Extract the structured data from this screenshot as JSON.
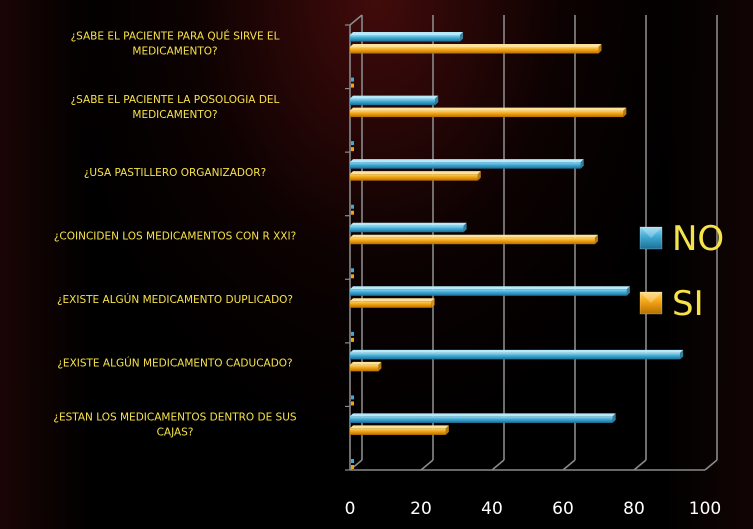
{
  "chart_data": {
    "type": "bar",
    "orientation": "horizontal",
    "categories": [
      "¿SABE EL PACIENTE PARA QUÉ SIRVE EL MEDICAMENTO?",
      "¿SABE EL PACIENTE LA POSOLOGIA DEL MEDICAMENTO?",
      "¿USA PASTILLERO ORGANIZADOR?",
      "¿COINCIDEN LOS MEDICAMENTOS CON R XXI?",
      "¿EXISTE ALGÚN MEDICAMENTO DUPLICADO?",
      "¿EXISTE ALGÚN MEDICAMENTO CADUCADO?",
      "¿ESTAN LOS MEDICAMENTOS DENTRO DE SUS CAJAS?"
    ],
    "series": [
      {
        "name": "NO",
        "color": "#3fa9d4",
        "values": [
          31,
          24,
          65,
          32,
          78,
          93,
          74
        ]
      },
      {
        "name": "SI",
        "color": "#f2a314",
        "values": [
          70,
          77,
          36,
          69,
          23,
          8,
          27
        ]
      }
    ],
    "xlim": [
      0,
      100
    ],
    "xticks": [
      "0",
      "20",
      "40",
      "60",
      "80",
      "100"
    ],
    "legend_position": "right",
    "grid": true
  }
}
